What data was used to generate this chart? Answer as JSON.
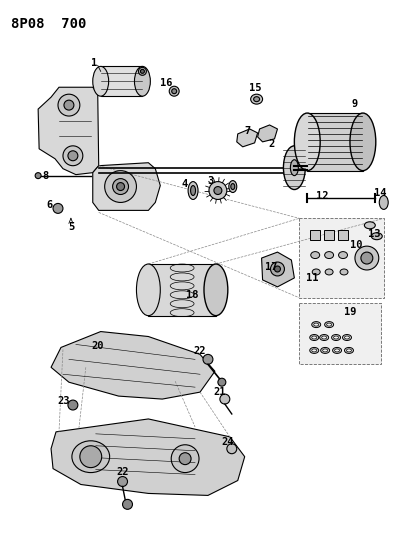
{
  "title": "8P08  700",
  "background_color": "#ffffff",
  "line_color": "#000000",
  "figsize": [
    4.04,
    5.33
  ],
  "dpi": 100,
  "title_fontsize": 10,
  "label_fontsize": 7.5
}
